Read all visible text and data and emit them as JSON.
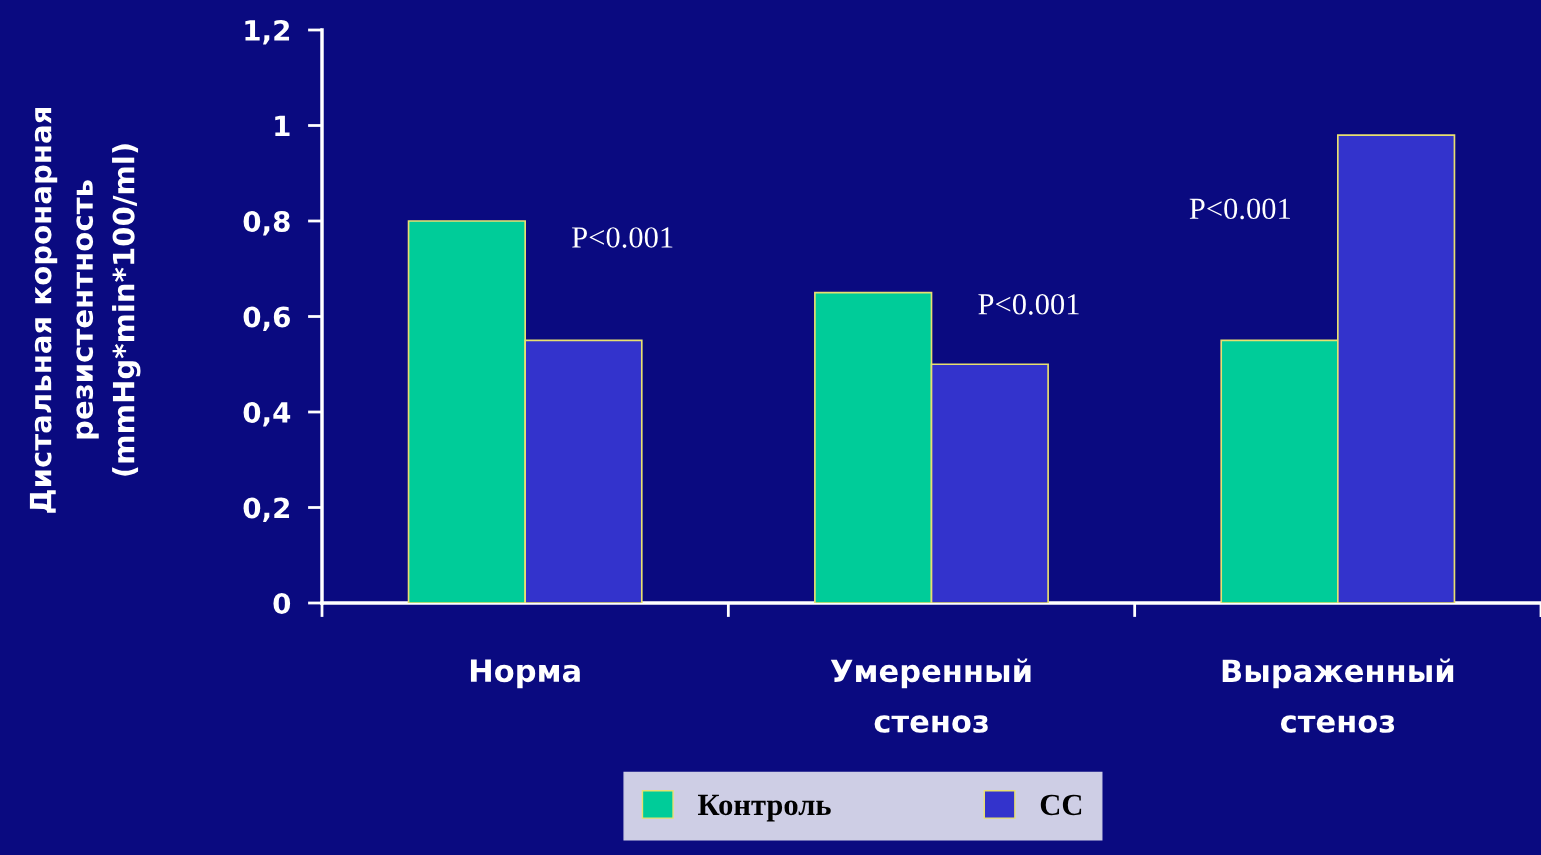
{
  "chart_data": {
    "type": "bar",
    "ylabel": "Дистальная коронарная\nрезистентность\n(mmHg*min*100/ml)",
    "categories": [
      "Норма",
      "Умеренный стеноз",
      "Выраженный стеноз"
    ],
    "series": [
      {
        "name": "Контроль",
        "color": "#00cc99",
        "values": [
          0.8,
          0.65,
          0.55
        ]
      },
      {
        "name": "CC",
        "color": "#3333cc",
        "values": [
          0.55,
          0.5,
          0.98
        ]
      }
    ],
    "ylim": [
      0,
      1.2
    ],
    "yticks": [
      0,
      {
        "value": 0.2,
        "label": "0,2"
      },
      {
        "value": 0.4,
        "label": "0,4"
      },
      {
        "value": 0.6,
        "label": "0,6"
      },
      {
        "value": 0.8,
        "label": "0,8"
      },
      1,
      {
        "value": 1.2,
        "label": "1,2"
      }
    ],
    "annotations": [
      {
        "text": "P<0.001",
        "x": "Норма",
        "y": 0.76
      },
      {
        "text": "P<0.001",
        "x": "Умеренный стеноз",
        "y": 0.62
      },
      {
        "text": "P<0.001",
        "x": "Выраженный стеноз",
        "y": 0.82
      }
    ],
    "grid": false,
    "legend": "bottom"
  }
}
